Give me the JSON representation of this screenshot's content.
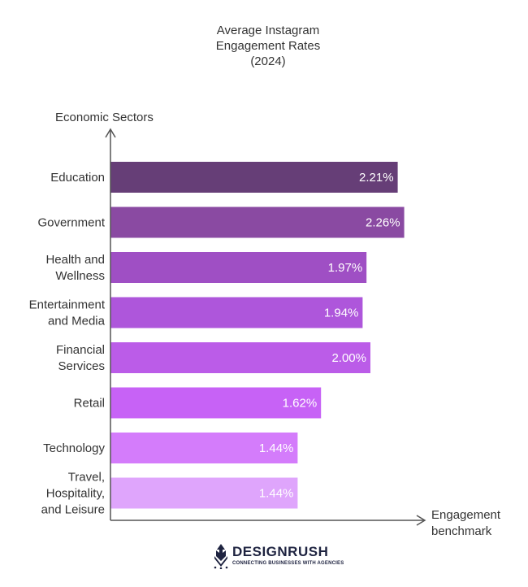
{
  "chart_data": {
    "type": "bar",
    "orientation": "horizontal",
    "title_lines": [
      "Average Instagram",
      "Engagement Rates",
      "(2024)"
    ],
    "ylabel": "Economic Sectors",
    "xlabel_lines": [
      "Engagement",
      "benchmark"
    ],
    "xlim": [
      0,
      2.4
    ],
    "categories": [
      {
        "lines": [
          "Education"
        ]
      },
      {
        "lines": [
          "Government"
        ]
      },
      {
        "lines": [
          "Health and",
          "Wellness"
        ]
      },
      {
        "lines": [
          "Entertainment",
          "and Media"
        ]
      },
      {
        "lines": [
          "Financial",
          "Services"
        ]
      },
      {
        "lines": [
          "Retail"
        ]
      },
      {
        "lines": [
          "Technology"
        ]
      },
      {
        "lines": [
          "Travel,",
          "Hospitality,",
          "and Leisure"
        ]
      }
    ],
    "values": [
      2.21,
      2.26,
      1.97,
      1.94,
      2.0,
      1.62,
      1.44,
      1.44
    ],
    "value_labels": [
      "2.21%",
      "2.26%",
      "1.97%",
      "1.94%",
      "2.00%",
      "1.62%",
      "1.44%",
      "1.44%"
    ],
    "colors": [
      "#663e77",
      "#8a4aa2",
      "#9f4fc4",
      "#ae56db",
      "#bb5ce8",
      "#c762f6",
      "#d47cfb",
      "#dfa5fc"
    ]
  },
  "logo": {
    "name": "DESIGNRUSH",
    "tagline": "CONNECTING BUSINESSES WITH AGENCIES",
    "icon": "designrush-logo-icon"
  }
}
